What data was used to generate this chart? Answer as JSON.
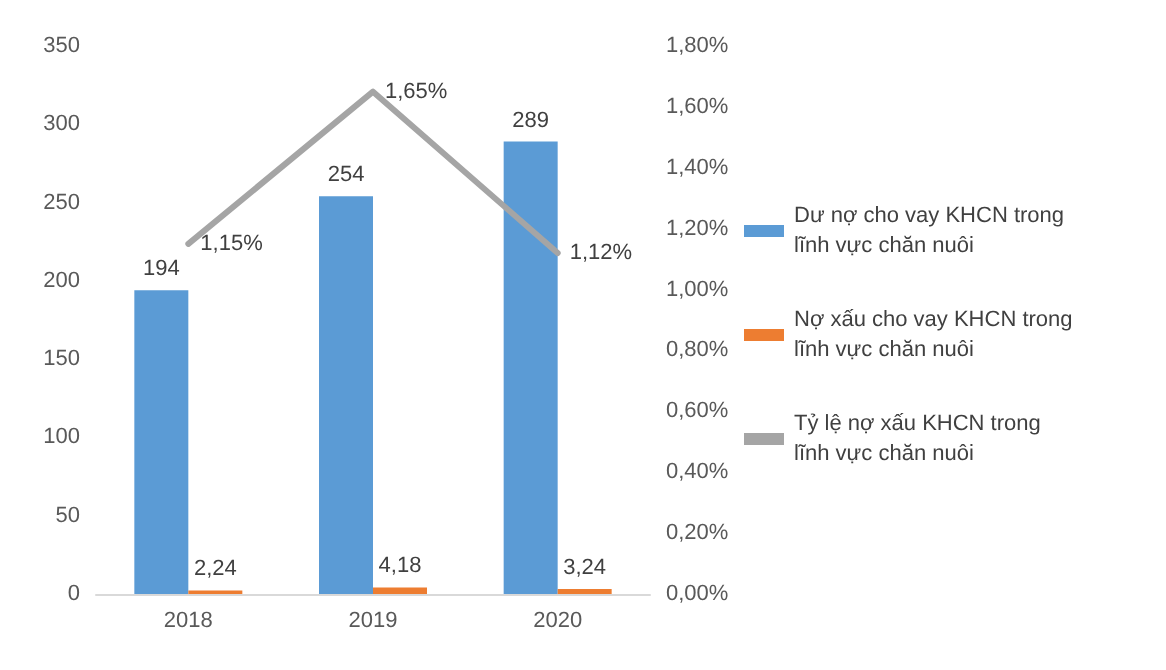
{
  "chart_data": {
    "type": "bar",
    "categories": [
      "2018",
      "2019",
      "2020"
    ],
    "series": [
      {
        "name": "Dư nợ cho vay KHCN trong lĩnh vực chăn nuôi",
        "color": "#5b9bd5",
        "values": [
          194,
          254,
          289
        ],
        "value_labels": [
          "194",
          "254",
          "289"
        ]
      },
      {
        "name": "Nợ xấu cho vay KHCN trong lĩnh vực chăn nuôi",
        "color": "#ed7d31",
        "values": [
          2.24,
          4.18,
          3.24
        ],
        "value_labels": [
          "2,24",
          "4,18",
          "3,24"
        ]
      },
      {
        "name": "Tỷ lệ nợ xấu KHCN trong lĩnh vực chăn nuôi",
        "type": "line",
        "axis": "y2",
        "color": "#a5a5a5",
        "values": [
          1.15,
          1.65,
          1.12
        ],
        "value_labels": [
          "1,15%",
          "1,65%",
          "1,12%"
        ]
      }
    ],
    "ylim": [
      0,
      350
    ],
    "yticks": [
      0,
      50,
      100,
      150,
      200,
      250,
      300,
      350
    ],
    "y2lim": [
      0,
      1.8
    ],
    "y2ticks": [
      {
        "value": 0,
        "label": "0,00%"
      },
      {
        "value": 0.2,
        "label": "0,20%"
      },
      {
        "value": 0.4,
        "label": "0,40%"
      },
      {
        "value": 0.6,
        "label": "0,60%"
      },
      {
        "value": 0.8,
        "label": "0,80%"
      },
      {
        "value": 1.0,
        "label": "1,00%"
      },
      {
        "value": 1.2,
        "label": "1,20%"
      },
      {
        "value": 1.4,
        "label": "1,40%"
      },
      {
        "value": 1.6,
        "label": "1,60%"
      },
      {
        "value": 1.8,
        "label": "1,80%"
      }
    ],
    "legend": "right",
    "grid": false,
    "marker": "none"
  }
}
